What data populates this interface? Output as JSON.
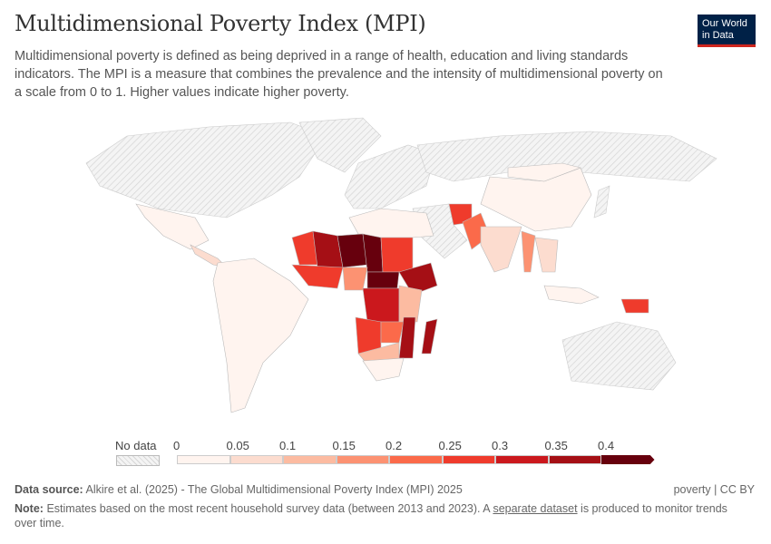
{
  "header": {
    "title": "Multidimensional Poverty Index (MPI)",
    "subtitle": "Multidimensional poverty is defined as being deprived in a range of health, education and living standards indicators. The MPI is a measure that combines the prevalence and the intensity of multidimensional poverty on a scale from 0 to 1. Higher values indicate higher poverty.",
    "logo": "Our World in Data"
  },
  "legend": {
    "no_data_label": "No data",
    "ticks": [
      "0",
      "0.05",
      "0.1",
      "0.15",
      "0.2",
      "0.25",
      "0.3",
      "0.35",
      "0.4"
    ],
    "colors": [
      "#fff4ef",
      "#fcdccf",
      "#fcbba1",
      "#fc9272",
      "#fb6a4a",
      "#ef3b2c",
      "#cb181d",
      "#a50f15",
      "#67000d"
    ],
    "no_data_color": "#e6e6e6"
  },
  "map_values": {
    "mexico": 0.016,
    "central_america": 0.06,
    "south_america": 0.02,
    "north_africa": 0.01,
    "mauritania": 0.26,
    "mali": 0.38,
    "niger": 0.6,
    "chad": 0.52,
    "sudan": 0.28,
    "ethiopia": 0.36,
    "west_coast": 0.3,
    "nigeria": 0.17,
    "car": 0.46,
    "drc": 0.33,
    "angola": 0.28,
    "east_africa": 0.15,
    "zambia": 0.23,
    "mozambique": 0.37,
    "madagascar": 0.38,
    "namibia_botswana": 0.1,
    "south_africa": 0.02,
    "afghanistan": 0.27,
    "pakistan": 0.2,
    "india": 0.07,
    "china": 0.016,
    "mongolia": 0.03,
    "myanmar": 0.18,
    "southeast_asia": 0.05,
    "indonesia": 0.014,
    "png": 0.26
  },
  "footer": {
    "source_label": "Data source:",
    "source": "Alkire et al. (2025) - The Global Multidimensional Poverty Index (MPI) 2025",
    "license": "poverty | CC BY",
    "note_label": "Note:",
    "note_pre": "Estimates based on the most recent household survey data (between 2013 and 2023). A",
    "note_link": "separate dataset",
    "note_post": "is produced to monitor trends over time."
  }
}
